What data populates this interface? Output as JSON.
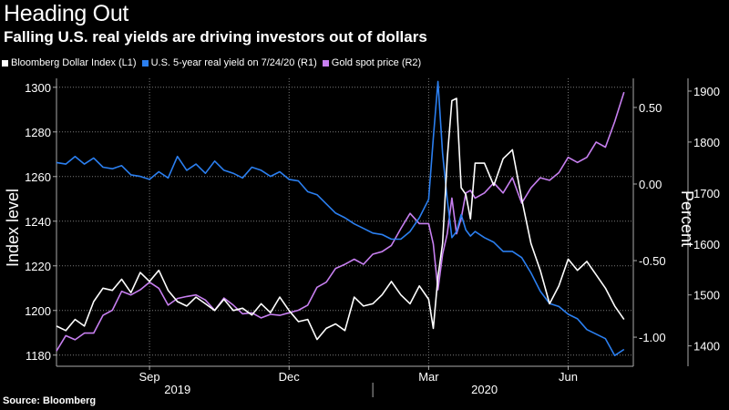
{
  "title": "Heading Out",
  "subtitle": "Falling U.S. real yields are driving investors out of dollars",
  "source": "Source: Bloomberg",
  "chart_data": {
    "type": "line",
    "x_period_labels": [
      "Sep",
      "Dec",
      "Mar",
      "Jun"
    ],
    "x_period_positions_month_index": [
      2,
      5,
      8,
      11
    ],
    "x_year_labels": [
      "2019",
      "2020"
    ],
    "x_range_month_index": [
      0,
      12.4
    ],
    "left_axis": {
      "label": "Index level",
      "range": [
        1175,
        1304
      ],
      "ticks": [
        1180,
        1200,
        1220,
        1240,
        1260,
        1280,
        1300
      ]
    },
    "right_axis_1": {
      "label": "Percent",
      "range": [
        -1.19,
        0.69
      ],
      "ticks": [
        -1.0,
        -0.5,
        0.0,
        0.5
      ],
      "tick_labels": [
        "-1.00",
        "-0.50",
        "0.00",
        "0.50"
      ]
    },
    "right_axis_2": {
      "range": [
        1360,
        1925
      ],
      "ticks": [
        1400,
        1500,
        1600,
        1700,
        1800,
        1900
      ]
    },
    "series": [
      {
        "name": "Bloomberg Dollar Index (L1)",
        "axis": "left",
        "color": "#ffffff",
        "x": [
          0,
          0.2,
          0.4,
          0.6,
          0.8,
          1.0,
          1.2,
          1.4,
          1.6,
          1.8,
          2.0,
          2.2,
          2.4,
          2.6,
          2.8,
          3.0,
          3.2,
          3.4,
          3.6,
          3.8,
          4.0,
          4.2,
          4.4,
          4.6,
          4.8,
          5.0,
          5.2,
          5.4,
          5.6,
          5.8,
          6.0,
          6.2,
          6.4,
          6.6,
          6.8,
          7.0,
          7.2,
          7.4,
          7.6,
          7.8,
          8.0,
          8.1,
          8.2,
          8.3,
          8.4,
          8.5,
          8.6,
          8.7,
          8.8,
          8.9,
          9.0,
          9.2,
          9.4,
          9.6,
          9.8,
          10.0,
          10.2,
          10.4,
          10.6,
          10.8,
          11.0,
          11.2,
          11.4,
          11.6,
          11.8,
          12.0,
          12.2
        ],
        "values": [
          1193,
          1191,
          1196,
          1193,
          1204,
          1210,
          1209,
          1214,
          1208,
          1217,
          1213,
          1218,
          1209,
          1204,
          1202,
          1206,
          1203,
          1200,
          1205,
          1200,
          1201,
          1198,
          1203,
          1199,
          1206,
          1200,
          1195,
          1196,
          1187,
          1192,
          1194,
          1191,
          1206,
          1202,
          1203,
          1207,
          1213,
          1207,
          1203,
          1211,
          1205,
          1192,
          1215,
          1230,
          1268,
          1294,
          1295,
          1255,
          1252,
          1241,
          1266,
          1266,
          1256,
          1268,
          1272,
          1250,
          1230,
          1218,
          1203,
          1211,
          1223,
          1218,
          1222,
          1216,
          1210,
          1202,
          1196
        ]
      },
      {
        "name": "U.S. 5-year real yield on 7/24/20 (R1)",
        "axis": "right1",
        "color": "#2b7ff0",
        "x": [
          0,
          0.2,
          0.4,
          0.6,
          0.8,
          1.0,
          1.2,
          1.4,
          1.6,
          1.8,
          2.0,
          2.2,
          2.4,
          2.6,
          2.8,
          3.0,
          3.2,
          3.4,
          3.6,
          3.8,
          4.0,
          4.2,
          4.4,
          4.6,
          4.8,
          5.0,
          5.2,
          5.4,
          5.6,
          5.8,
          6.0,
          6.2,
          6.4,
          6.6,
          6.8,
          7.0,
          7.2,
          7.4,
          7.6,
          7.8,
          8.0,
          8.1,
          8.2,
          8.3,
          8.4,
          8.5,
          8.6,
          8.7,
          8.8,
          8.9,
          9.0,
          9.2,
          9.4,
          9.6,
          9.8,
          10.0,
          10.2,
          10.4,
          10.6,
          10.8,
          11.0,
          11.2,
          11.4,
          11.6,
          11.8,
          12.0,
          12.2
        ],
        "values": [
          0.14,
          0.13,
          0.18,
          0.13,
          0.17,
          0.11,
          0.1,
          0.12,
          0.06,
          0.05,
          0.03,
          0.08,
          0.04,
          0.18,
          0.09,
          0.13,
          0.07,
          0.15,
          0.09,
          0.07,
          0.04,
          0.11,
          0.09,
          0.05,
          0.08,
          0.03,
          0.02,
          -0.05,
          -0.07,
          -0.13,
          -0.19,
          -0.22,
          -0.26,
          -0.29,
          -0.32,
          -0.33,
          -0.36,
          -0.36,
          -0.31,
          -0.22,
          -0.1,
          0.3,
          0.67,
          0.2,
          -0.1,
          -0.35,
          -0.31,
          -0.2,
          -0.3,
          -0.34,
          -0.31,
          -0.35,
          -0.38,
          -0.44,
          -0.44,
          -0.48,
          -0.58,
          -0.7,
          -0.78,
          -0.8,
          -0.85,
          -0.88,
          -0.95,
          -0.98,
          -1.01,
          -1.12,
          -1.08
        ]
      },
      {
        "name": "Gold spot price (R2)",
        "axis": "right2",
        "color": "#c77ff0",
        "x": [
          0,
          0.2,
          0.4,
          0.6,
          0.8,
          1.0,
          1.2,
          1.4,
          1.6,
          1.8,
          2.0,
          2.2,
          2.4,
          2.6,
          2.8,
          3.0,
          3.2,
          3.4,
          3.6,
          3.8,
          4.0,
          4.2,
          4.4,
          4.6,
          4.8,
          5.0,
          5.2,
          5.4,
          5.6,
          5.8,
          6.0,
          6.2,
          6.4,
          6.6,
          6.8,
          7.0,
          7.2,
          7.4,
          7.6,
          7.8,
          8.0,
          8.1,
          8.2,
          8.3,
          8.4,
          8.5,
          8.6,
          8.7,
          8.8,
          8.9,
          9.0,
          9.2,
          9.4,
          9.6,
          9.8,
          10.0,
          10.2,
          10.4,
          10.6,
          10.8,
          11.0,
          11.2,
          11.4,
          11.6,
          11.8,
          12.0,
          12.2
        ],
        "values": [
          1390,
          1420,
          1412,
          1425,
          1425,
          1460,
          1470,
          1507,
          1500,
          1510,
          1525,
          1513,
          1480,
          1493,
          1497,
          1500,
          1490,
          1470,
          1494,
          1480,
          1463,
          1465,
          1455,
          1462,
          1460,
          1465,
          1470,
          1480,
          1515,
          1525,
          1552,
          1560,
          1570,
          1560,
          1580,
          1585,
          1597,
          1630,
          1660,
          1640,
          1640,
          1600,
          1510,
          1580,
          1620,
          1690,
          1620,
          1650,
          1700,
          1705,
          1690,
          1700,
          1720,
          1700,
          1730,
          1680,
          1710,
          1730,
          1725,
          1740,
          1770,
          1760,
          1770,
          1800,
          1790,
          1840,
          1898
        ]
      }
    ]
  }
}
